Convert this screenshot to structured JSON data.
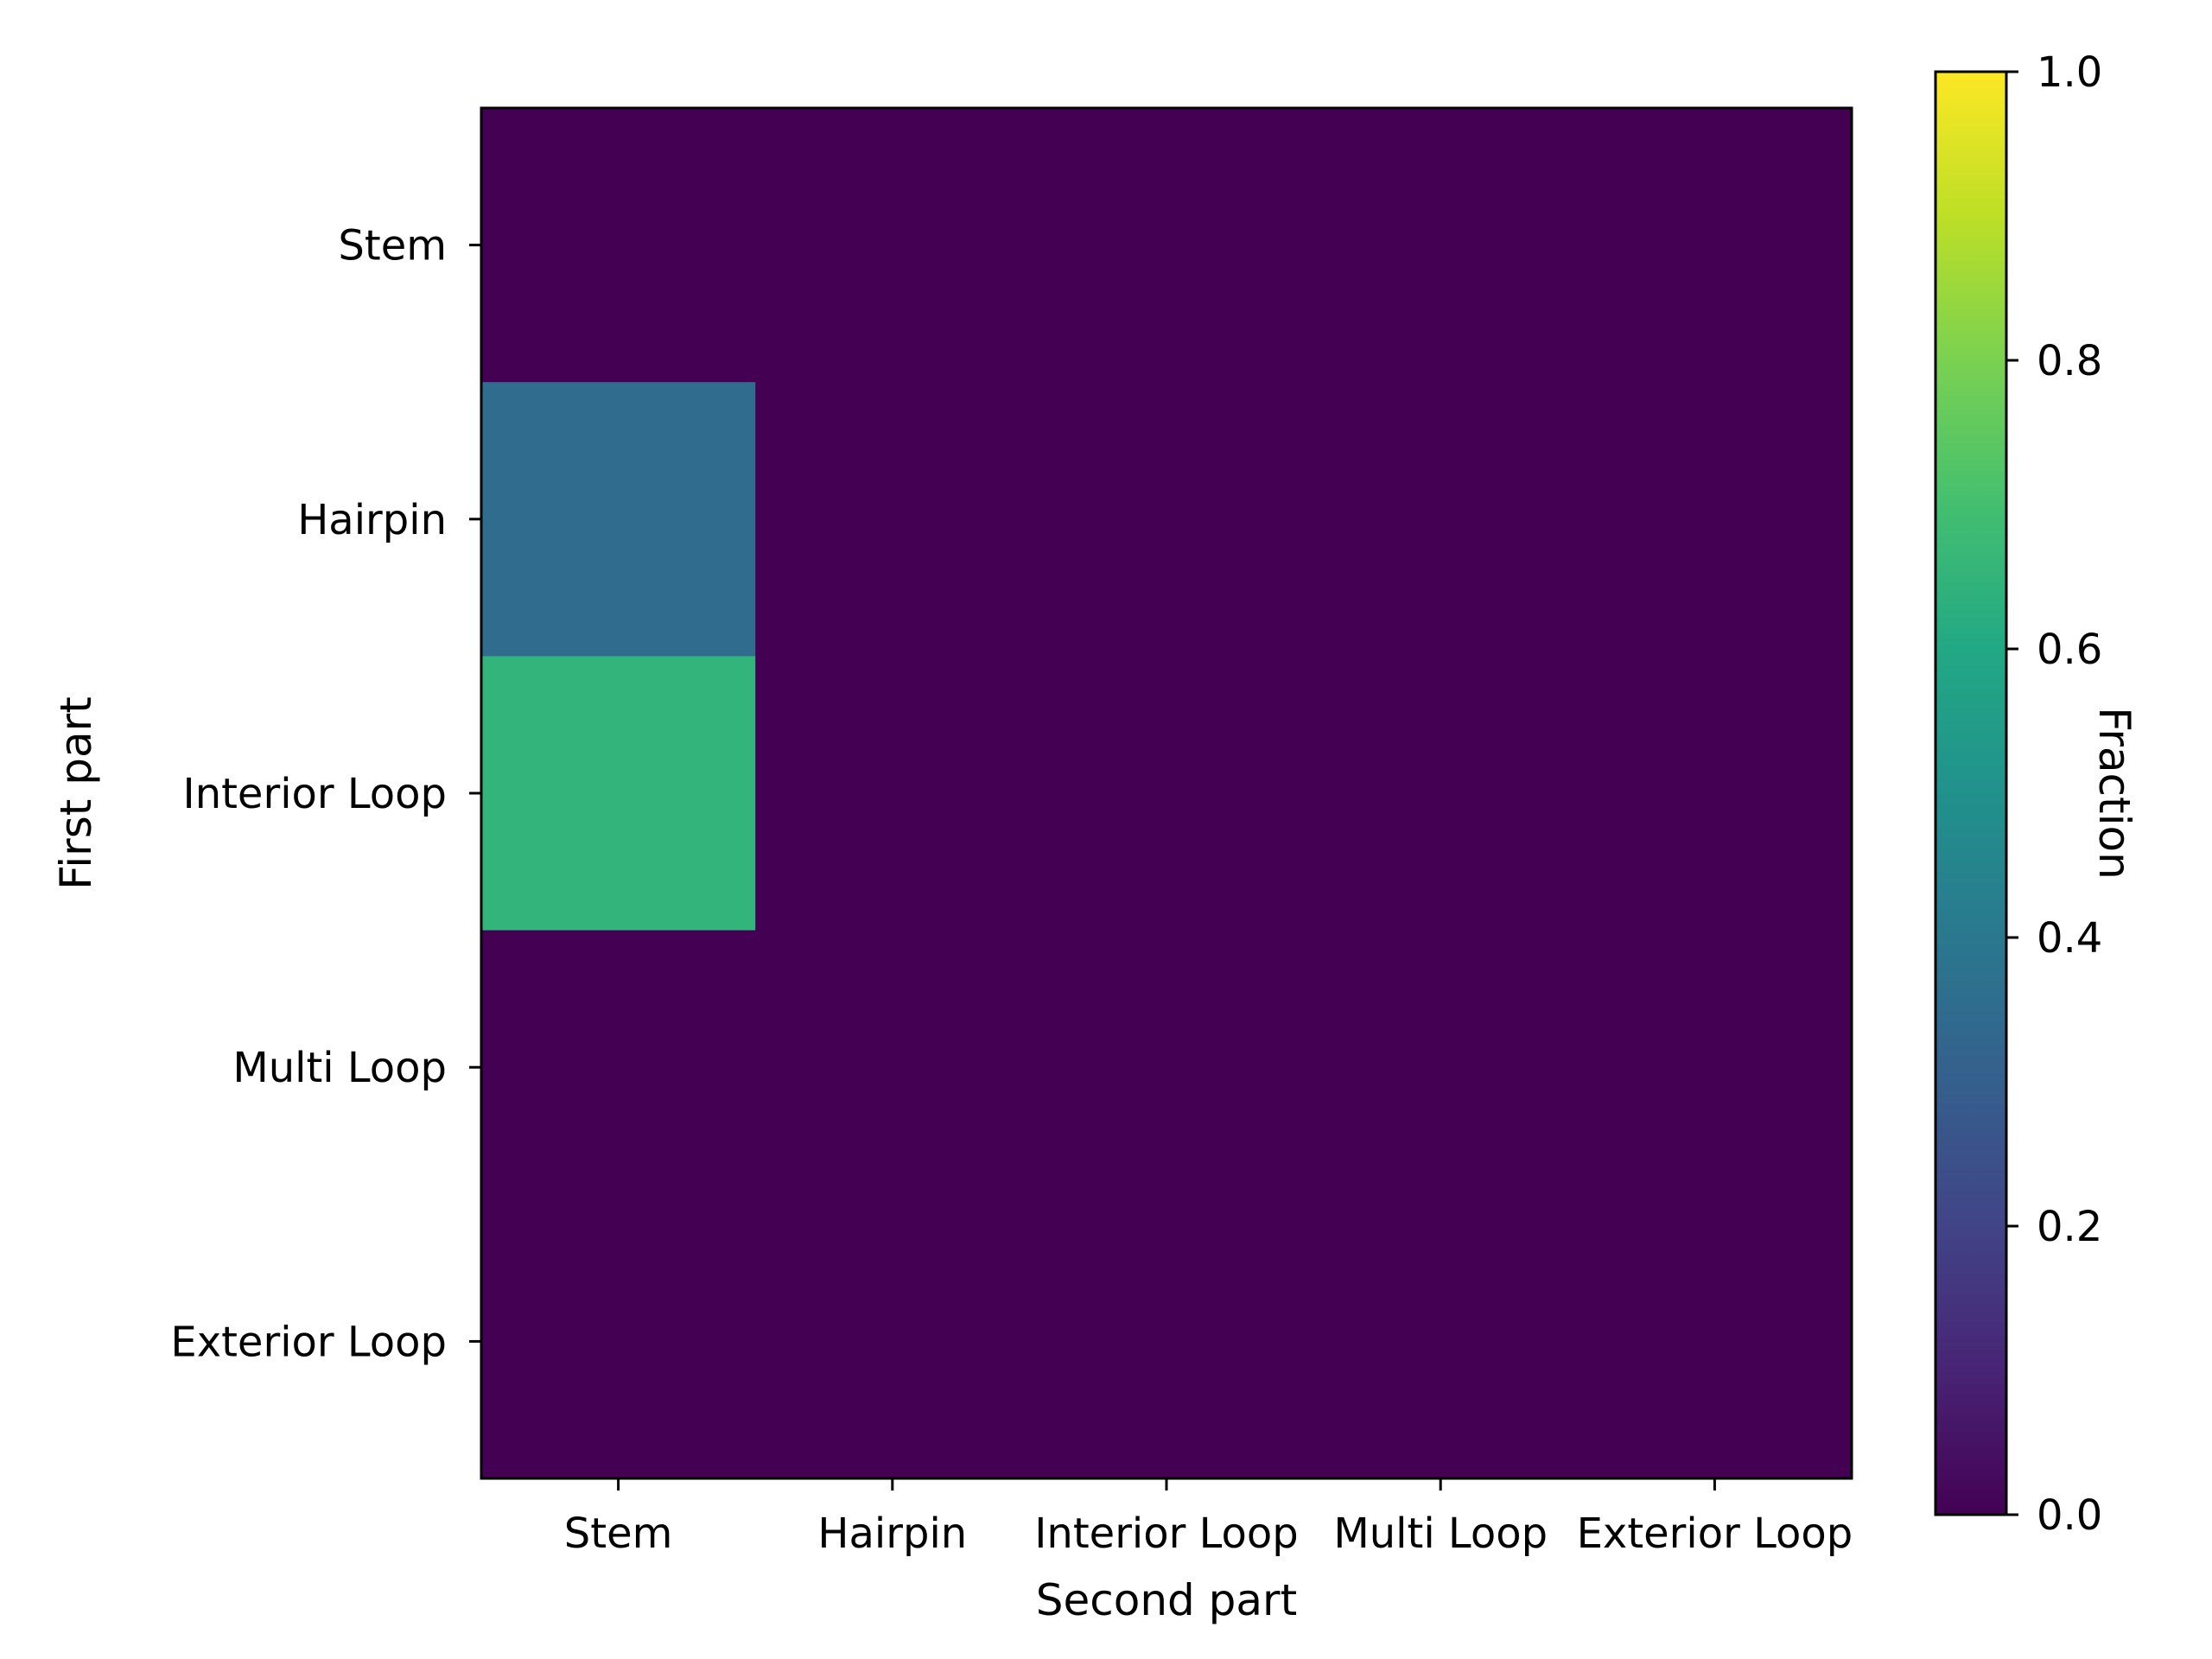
{
  "chart_data": {
    "type": "heatmap",
    "xlabel": "Second part",
    "ylabel": "First part",
    "x_categories": [
      "Stem",
      "Hairpin",
      "Interior Loop",
      "Multi Loop",
      "Exterior Loop"
    ],
    "y_categories": [
      "Stem",
      "Hairpin",
      "Interior Loop",
      "Multi Loop",
      "Exterior Loop"
    ],
    "values": [
      [
        0.0,
        0.0,
        0.0,
        0.0,
        0.0
      ],
      [
        0.35,
        0.0,
        0.0,
        0.0,
        0.0
      ],
      [
        0.65,
        0.0,
        0.0,
        0.0,
        0.0
      ],
      [
        0.0,
        0.0,
        0.0,
        0.0,
        0.0
      ],
      [
        0.0,
        0.0,
        0.0,
        0.0,
        0.0
      ]
    ],
    "colormap": "viridis",
    "colorbar": {
      "label": "Fraction",
      "range": [
        0.0,
        1.0
      ],
      "ticks": [
        "0.0",
        "0.2",
        "0.4",
        "0.6",
        "0.8",
        "1.0"
      ]
    },
    "grid": false
  }
}
